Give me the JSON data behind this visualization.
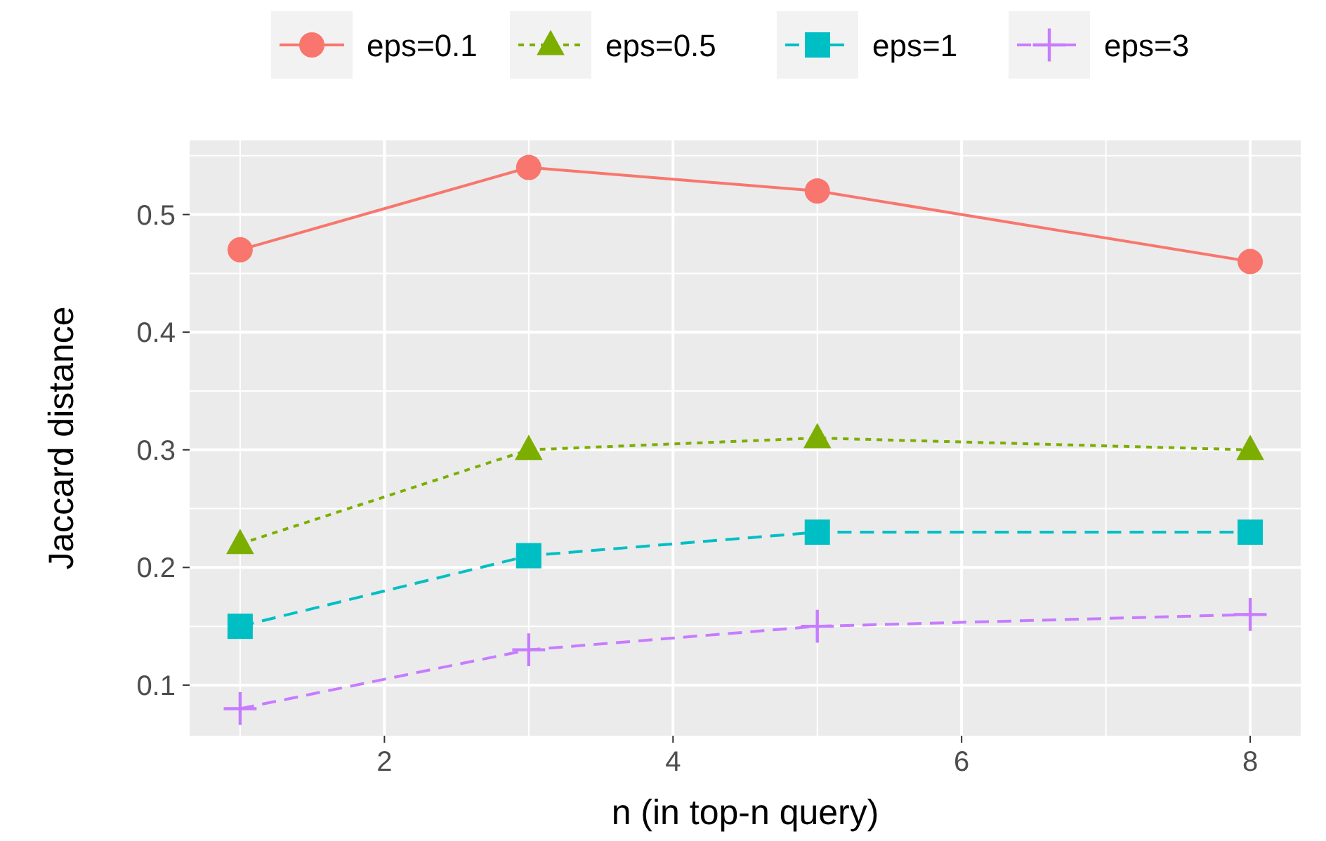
{
  "chart_data": {
    "type": "line",
    "xlabel": "n (in top-n query)",
    "ylabel": "Jaccard distance",
    "x": [
      1,
      3,
      5,
      8
    ],
    "series": [
      {
        "name": "eps=0.1",
        "color": "#f8766d",
        "values": [
          0.47,
          0.54,
          0.52,
          0.46
        ],
        "marker": "circle",
        "line_style": "solid"
      },
      {
        "name": "eps=0.5",
        "color": "#7cae00",
        "values": [
          0.22,
          0.3,
          0.31,
          0.3
        ],
        "marker": "triangle",
        "line_style": "dotted"
      },
      {
        "name": "eps=1",
        "color": "#00bfc4",
        "values": [
          0.15,
          0.21,
          0.23,
          0.23
        ],
        "marker": "square",
        "line_style": "dashed"
      },
      {
        "name": "eps=3",
        "color": "#c77cff",
        "values": [
          0.08,
          0.13,
          0.15,
          0.16
        ],
        "marker": "cross",
        "line_style": "dashed"
      }
    ],
    "xlim": [
      0.65,
      8.35
    ],
    "xticks": [
      2,
      4,
      6,
      8
    ],
    "ylim": [
      0.057,
      0.563
    ],
    "yticks": [
      0.1,
      0.2,
      0.3,
      0.4,
      0.5
    ],
    "grid": true,
    "legend": "top"
  }
}
